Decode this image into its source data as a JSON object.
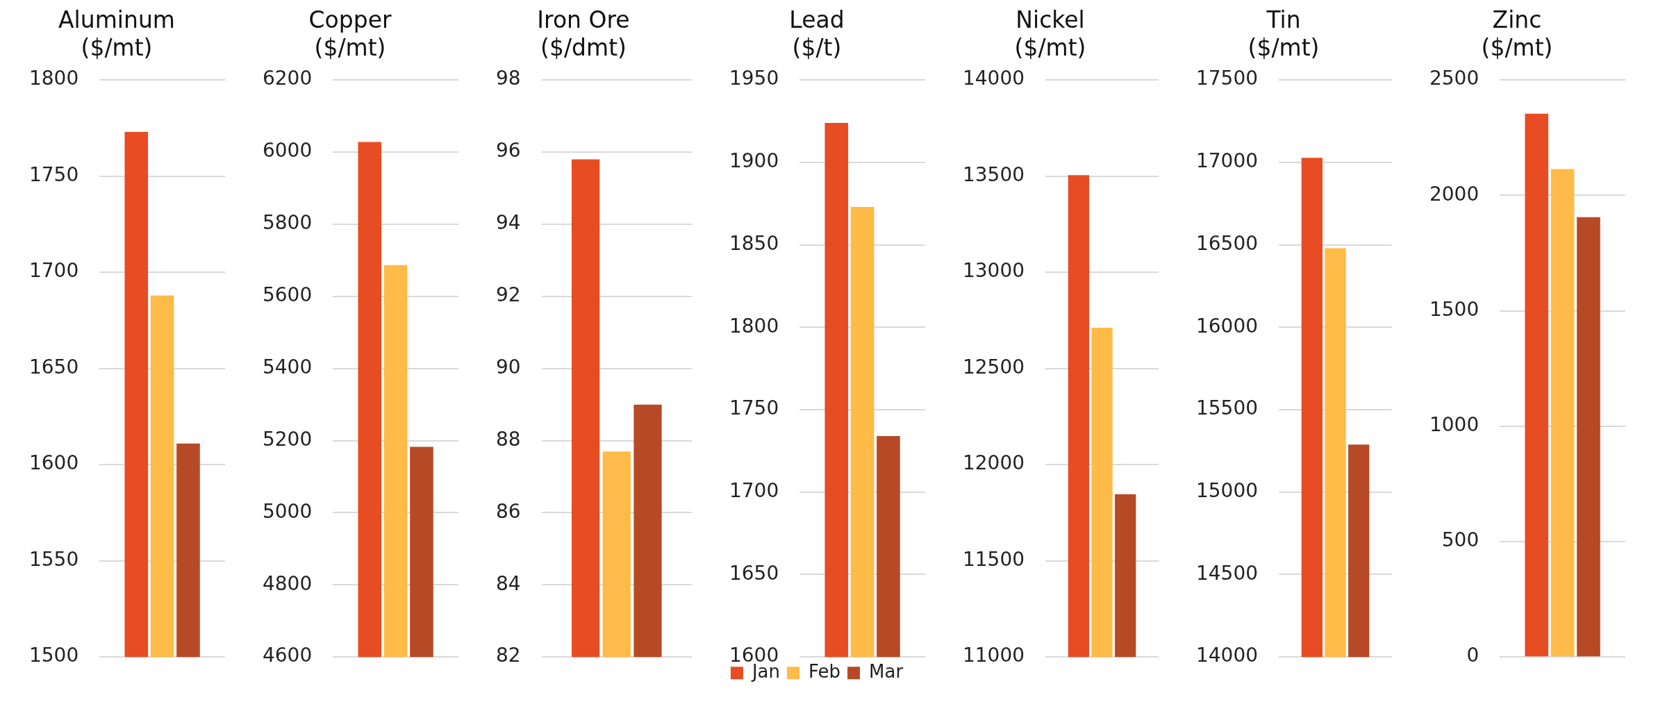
{
  "chart_data": [
    {
      "type": "bar",
      "title": "Aluminum",
      "subtitle": "($/mt)",
      "categories": [
        null
      ],
      "series": [
        {
          "color": "#e84c22",
          "values": [
            1773
          ]
        },
        {
          "color": "#ffbb47",
          "values": [
            1688
          ]
        },
        {
          "color": "#b74a26",
          "values": [
            1611
          ]
        }
      ],
      "ylim": [
        1500,
        1800
      ],
      "yticks": [
        1500,
        1550,
        1600,
        1650,
        1700,
        1750,
        1800
      ],
      "grid": "y",
      "legend": false,
      "tick_labels": "y"
    },
    {
      "type": "bar",
      "title": "Copper",
      "subtitle": "($/mt)",
      "categories": [
        null
      ],
      "series": [
        {
          "color": "#e84c22",
          "values": [
            6028
          ]
        },
        {
          "color": "#ffbb47",
          "values": [
            5687
          ]
        },
        {
          "color": "#b74a26",
          "values": [
            5183
          ]
        }
      ],
      "ylim": [
        4600,
        6200
      ],
      "yticks": [
        4600,
        4800,
        5000,
        5200,
        5400,
        5600,
        5800,
        6000,
        6200
      ],
      "grid": "y",
      "legend": false,
      "tick_labels": "y"
    },
    {
      "type": "bar",
      "title": "Iron Ore",
      "subtitle": "($/dmt)",
      "categories": [
        null
      ],
      "series": [
        {
          "color": "#e84c22",
          "values": [
            95.8
          ]
        },
        {
          "color": "#ffbb47",
          "values": [
            87.7
          ]
        },
        {
          "color": "#b74a26",
          "values": [
            89.0
          ]
        }
      ],
      "ylim": [
        82,
        98
      ],
      "yticks": [
        82,
        84,
        86,
        88,
        90,
        92,
        94,
        96,
        98
      ],
      "grid": "y",
      "legend": false,
      "tick_labels": "y"
    },
    {
      "type": "bar",
      "title": "Lead",
      "subtitle": "($/t)",
      "categories": [
        null
      ],
      "series": [
        {
          "name": "Jan",
          "color": "#e84c22",
          "values": [
            1924
          ]
        },
        {
          "name": "Feb",
          "color": "#ffbb47",
          "values": [
            1873
          ]
        },
        {
          "name": "Mar",
          "color": "#b74a26",
          "values": [
            1734
          ]
        }
      ],
      "ylim": [
        1600,
        1950
      ],
      "yticks": [
        1600,
        1650,
        1700,
        1750,
        1800,
        1850,
        1900,
        1950
      ],
      "grid": "y",
      "legend": "bottom",
      "tick_labels": "y"
    },
    {
      "type": "bar",
      "title": "Nickel",
      "subtitle": "($/mt)",
      "categories": [
        null
      ],
      "series": [
        {
          "color": "#e84c22",
          "values": [
            13505
          ]
        },
        {
          "color": "#ffbb47",
          "values": [
            12712
          ]
        },
        {
          "color": "#b74a26",
          "values": [
            11846
          ]
        }
      ],
      "ylim": [
        11000,
        14000
      ],
      "yticks": [
        11000,
        11500,
        12000,
        12500,
        13000,
        13500,
        14000
      ],
      "grid": "y",
      "legend": false,
      "tick_labels": "y"
    },
    {
      "type": "bar",
      "title": "Tin",
      "subtitle": "($/mt)",
      "categories": [
        null
      ],
      "series": [
        {
          "color": "#e84c22",
          "values": [
            17028
          ]
        },
        {
          "color": "#ffbb47",
          "values": [
            16480
          ]
        },
        {
          "color": "#b74a26",
          "values": [
            15289
          ]
        }
      ],
      "ylim": [
        14000,
        17500
      ],
      "yticks": [
        14000,
        14500,
        15000,
        15500,
        16000,
        16500,
        17000,
        17500
      ],
      "grid": "y",
      "legend": false,
      "tick_labels": "y"
    },
    {
      "type": "bar",
      "title": "Zinc",
      "subtitle": "($/mt)",
      "categories": [
        null
      ],
      "series": [
        {
          "color": "#e84c22",
          "values": [
            2354
          ]
        },
        {
          "color": "#ffbb47",
          "values": [
            2114
          ]
        },
        {
          "color": "#b74a26",
          "values": [
            1906
          ]
        }
      ],
      "ylim": [
        0,
        2500
      ],
      "yticks": [
        0,
        500,
        1000,
        1500,
        2000,
        2500
      ],
      "grid": "y",
      "legend": false,
      "tick_labels": "y"
    }
  ]
}
